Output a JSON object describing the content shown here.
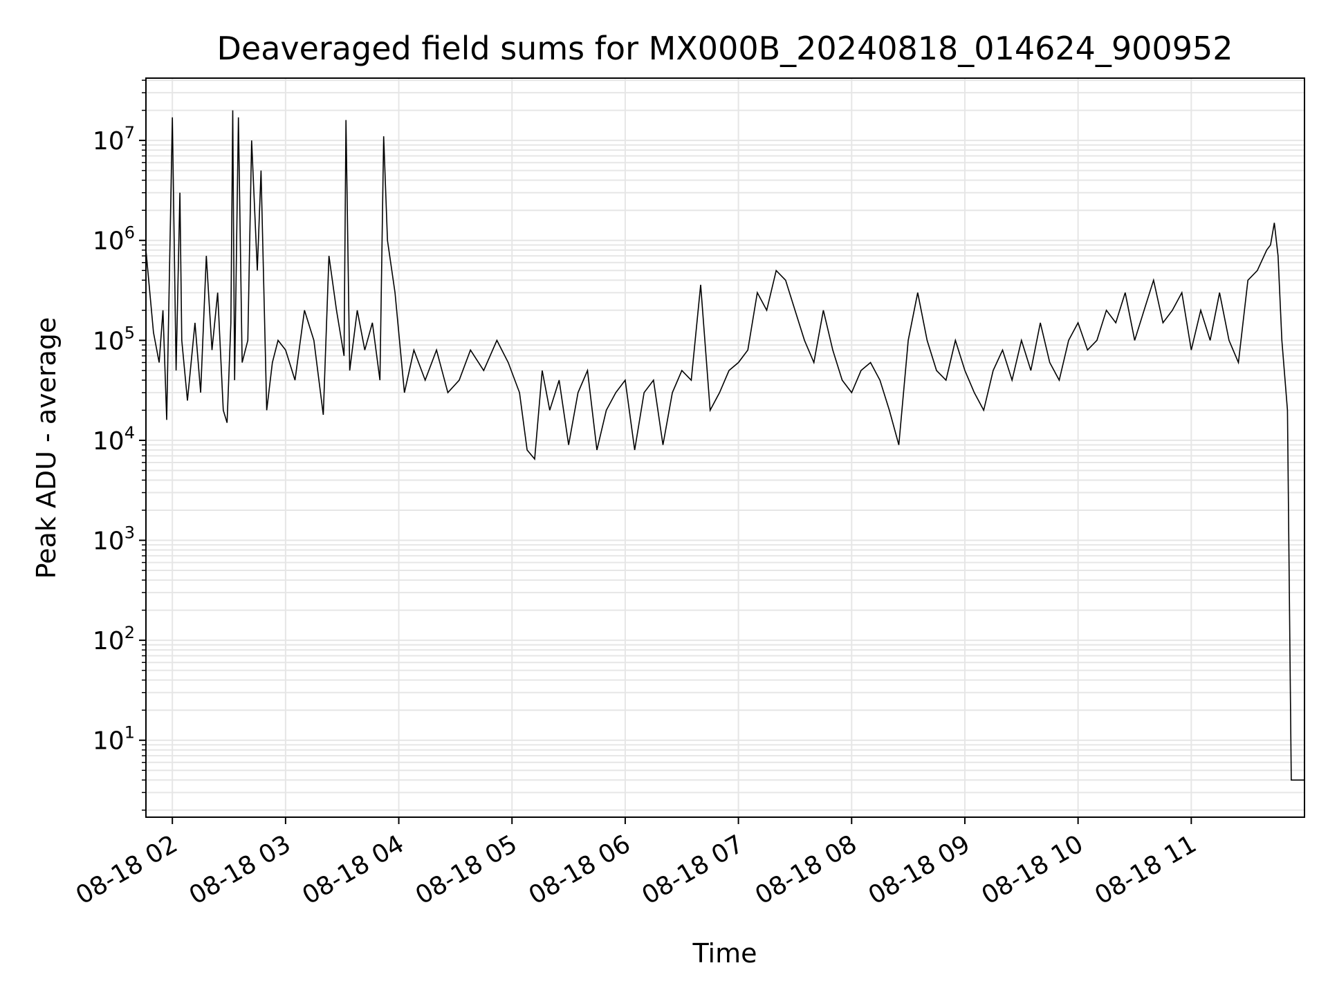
{
  "chart_data": {
    "type": "line",
    "title": "Deaveraged field sums for MX000B_20240818_014624_900952",
    "xlabel": "Time",
    "ylabel": "Peak ADU - average",
    "y_scale": "log",
    "ylim": [
      1.7,
      42000000
    ],
    "xlim": [
      "2024-08-18 01:46",
      "2024-08-18 12:00"
    ],
    "grid": true,
    "line_color": "#000000",
    "grid_color": "#e6e6e6",
    "x_ticks": [
      {
        "t": "2024-08-18 02:00",
        "label": "08-18 02"
      },
      {
        "t": "2024-08-18 03:00",
        "label": "08-18 03"
      },
      {
        "t": "2024-08-18 04:00",
        "label": "08-18 04"
      },
      {
        "t": "2024-08-18 05:00",
        "label": "08-18 05"
      },
      {
        "t": "2024-08-18 06:00",
        "label": "08-18 06"
      },
      {
        "t": "2024-08-18 07:00",
        "label": "08-18 07"
      },
      {
        "t": "2024-08-18 08:00",
        "label": "08-18 08"
      },
      {
        "t": "2024-08-18 09:00",
        "label": "08-18 09"
      },
      {
        "t": "2024-08-18 10:00",
        "label": "08-18 10"
      },
      {
        "t": "2024-08-18 11:00",
        "label": "08-18 11"
      }
    ],
    "y_ticks": [
      {
        "value": 10,
        "base": "10",
        "exp": "1"
      },
      {
        "value": 100,
        "base": "10",
        "exp": "2"
      },
      {
        "value": 1000,
        "base": "10",
        "exp": "3"
      },
      {
        "value": 10000,
        "base": "10",
        "exp": "4"
      },
      {
        "value": 100000,
        "base": "10",
        "exp": "5"
      },
      {
        "value": 1000000,
        "base": "10",
        "exp": "6"
      },
      {
        "value": 10000000,
        "base": "10",
        "exp": "7"
      }
    ],
    "series": [
      {
        "x": [
          "2024-08-18 01:46",
          "2024-08-18 01:50",
          "2024-08-18 01:53",
          "2024-08-18 01:55",
          "2024-08-18 01:57",
          "2024-08-18 02:00",
          "2024-08-18 02:02",
          "2024-08-18 02:04",
          "2024-08-18 02:05",
          "2024-08-18 02:08",
          "2024-08-18 02:12",
          "2024-08-18 02:15",
          "2024-08-18 02:18",
          "2024-08-18 02:21",
          "2024-08-18 02:24",
          "2024-08-18 02:27",
          "2024-08-18 02:29",
          "2024-08-18 02:31",
          "2024-08-18 02:32",
          "2024-08-18 02:33",
          "2024-08-18 02:35",
          "2024-08-18 02:37",
          "2024-08-18 02:40",
          "2024-08-18 02:42",
          "2024-08-18 02:45",
          "2024-08-18 02:47",
          "2024-08-18 02:50",
          "2024-08-18 02:53",
          "2024-08-18 02:56",
          "2024-08-18 03:00",
          "2024-08-18 03:05",
          "2024-08-18 03:10",
          "2024-08-18 03:15",
          "2024-08-18 03:20",
          "2024-08-18 03:23",
          "2024-08-18 03:27",
          "2024-08-18 03:31",
          "2024-08-18 03:32",
          "2024-08-18 03:34",
          "2024-08-18 03:38",
          "2024-08-18 03:42",
          "2024-08-18 03:46",
          "2024-08-18 03:50",
          "2024-08-18 03:52",
          "2024-08-18 03:54",
          "2024-08-18 03:58",
          "2024-08-18 04:03",
          "2024-08-18 04:08",
          "2024-08-18 04:14",
          "2024-08-18 04:20",
          "2024-08-18 04:26",
          "2024-08-18 04:32",
          "2024-08-18 04:38",
          "2024-08-18 04:45",
          "2024-08-18 04:52",
          "2024-08-18 04:58",
          "2024-08-18 05:04",
          "2024-08-18 05:08",
          "2024-08-18 05:12",
          "2024-08-18 05:16",
          "2024-08-18 05:20",
          "2024-08-18 05:25",
          "2024-08-18 05:30",
          "2024-08-18 05:35",
          "2024-08-18 05:40",
          "2024-08-18 05:45",
          "2024-08-18 05:50",
          "2024-08-18 05:55",
          "2024-08-18 06:00",
          "2024-08-18 06:05",
          "2024-08-18 06:10",
          "2024-08-18 06:15",
          "2024-08-18 06:20",
          "2024-08-18 06:25",
          "2024-08-18 06:30",
          "2024-08-18 06:35",
          "2024-08-18 06:40",
          "2024-08-18 06:45",
          "2024-08-18 06:50",
          "2024-08-18 06:55",
          "2024-08-18 07:00",
          "2024-08-18 07:05",
          "2024-08-18 07:10",
          "2024-08-18 07:15",
          "2024-08-18 07:20",
          "2024-08-18 07:25",
          "2024-08-18 07:30",
          "2024-08-18 07:35",
          "2024-08-18 07:40",
          "2024-08-18 07:45",
          "2024-08-18 07:50",
          "2024-08-18 07:55",
          "2024-08-18 08:00",
          "2024-08-18 08:05",
          "2024-08-18 08:10",
          "2024-08-18 08:15",
          "2024-08-18 08:20",
          "2024-08-18 08:25",
          "2024-08-18 08:30",
          "2024-08-18 08:35",
          "2024-08-18 08:40",
          "2024-08-18 08:45",
          "2024-08-18 08:50",
          "2024-08-18 08:55",
          "2024-08-18 09:00",
          "2024-08-18 09:05",
          "2024-08-18 09:10",
          "2024-08-18 09:15",
          "2024-08-18 09:20",
          "2024-08-18 09:25",
          "2024-08-18 09:30",
          "2024-08-18 09:35",
          "2024-08-18 09:40",
          "2024-08-18 09:45",
          "2024-08-18 09:50",
          "2024-08-18 09:55",
          "2024-08-18 10:00",
          "2024-08-18 10:05",
          "2024-08-18 10:10",
          "2024-08-18 10:15",
          "2024-08-18 10:20",
          "2024-08-18 10:25",
          "2024-08-18 10:30",
          "2024-08-18 10:35",
          "2024-08-18 10:40",
          "2024-08-18 10:45",
          "2024-08-18 10:50",
          "2024-08-18 10:55",
          "2024-08-18 11:00",
          "2024-08-18 11:05",
          "2024-08-18 11:10",
          "2024-08-18 11:15",
          "2024-08-18 11:20",
          "2024-08-18 11:25",
          "2024-08-18 11:30",
          "2024-08-18 11:35",
          "2024-08-18 11:40",
          "2024-08-18 11:42",
          "2024-08-18 11:44",
          "2024-08-18 11:46",
          "2024-08-18 11:48",
          "2024-08-18 11:51",
          "2024-08-18 11:53",
          "2024-08-18 11:55",
          "2024-08-18 11:58",
          "2024-08-18 12:00"
        ],
        "y": [
          800000,
          120000,
          60000,
          200000,
          16000,
          17000000,
          50000,
          3000000,
          100000,
          25000,
          150000,
          30000,
          700000,
          80000,
          300000,
          20000,
          15000,
          150000,
          20000000,
          40000,
          17000000,
          60000,
          100000,
          10000000,
          500000,
          5000000,
          20000,
          60000,
          100000,
          80000,
          40000,
          200000,
          100000,
          18000,
          700000,
          200000,
          70000,
          16000000,
          50000,
          200000,
          80000,
          150000,
          40000,
          11000000,
          1000000,
          300000,
          30000,
          80000,
          40000,
          80000,
          30000,
          40000,
          80000,
          50000,
          100000,
          60000,
          30000,
          8000,
          6500,
          50000,
          20000,
          40000,
          9000,
          30000,
          50000,
          8000,
          20000,
          30000,
          40000,
          8000,
          30000,
          40000,
          9000,
          30000,
          50000,
          40000,
          360000,
          20000,
          30000,
          50000,
          60000,
          80000,
          300000,
          200000,
          500000,
          400000,
          200000,
          100000,
          60000,
          200000,
          80000,
          40000,
          30000,
          50000,
          60000,
          40000,
          20000,
          9000,
          100000,
          300000,
          100000,
          50000,
          40000,
          100000,
          50000,
          30000,
          20000,
          50000,
          80000,
          40000,
          100000,
          50000,
          150000,
          60000,
          40000,
          100000,
          150000,
          80000,
          100000,
          200000,
          150000,
          300000,
          100000,
          200000,
          400000,
          150000,
          200000,
          300000,
          80000,
          200000,
          100000,
          300000,
          100000,
          60000,
          400000,
          500000,
          800000,
          900000,
          1500000,
          700000,
          100000,
          20000,
          4,
          4,
          4,
          4
        ]
      }
    ]
  }
}
